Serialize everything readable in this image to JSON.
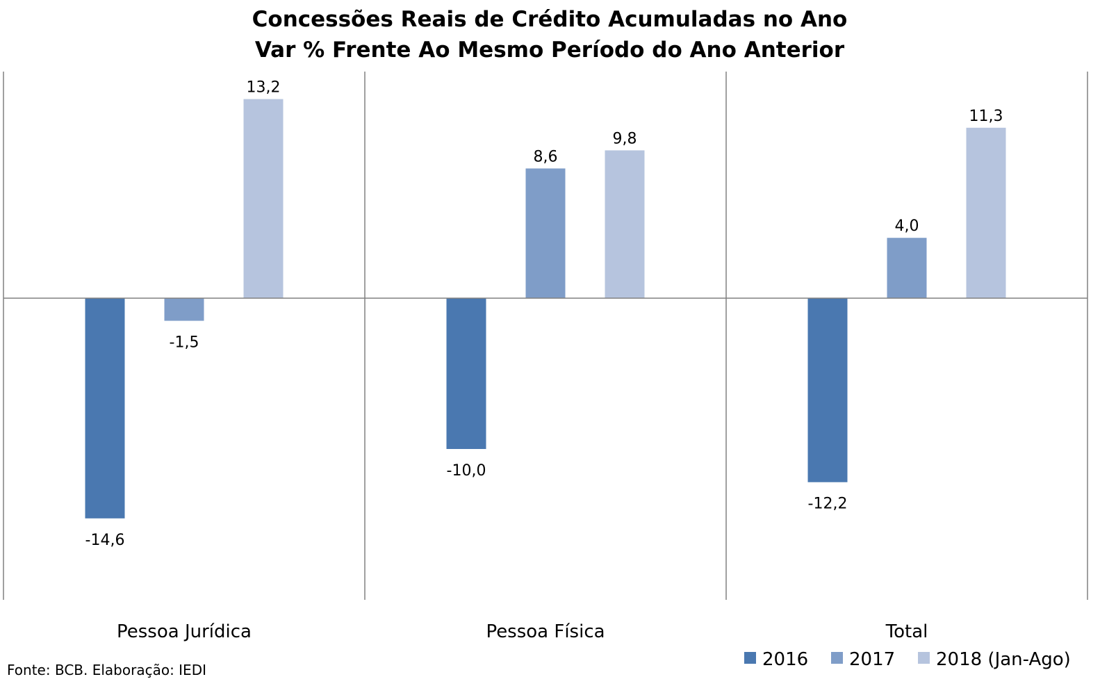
{
  "chart_data": {
    "type": "bar",
    "title": "Concessões Reais de Crédito Acumuladas no Ano",
    "subtitle": "Var % Frente Ao Mesmo Período do Ano Anterior",
    "categories": [
      "Pessoa Jurídica",
      "Pessoa Física",
      "Total"
    ],
    "series": [
      {
        "name": "2016",
        "color": "#4a78b0",
        "values": [
          -14.6,
          -10.0,
          -12.2
        ],
        "labels": [
          "-14,6",
          "-10,0",
          "-12,2"
        ]
      },
      {
        "name": "2017",
        "color": "#7f9dc8",
        "values": [
          -1.5,
          8.6,
          4.0
        ],
        "labels": [
          "-1,5",
          "8,6",
          "4,0"
        ]
      },
      {
        "name": "2018 (Jan-Ago)",
        "color": "#b6c4de",
        "values": [
          13.2,
          9.8,
          11.3
        ],
        "labels": [
          "13,2",
          "9,8",
          "11,3"
        ]
      }
    ],
    "ylim": [
      -20,
      15
    ],
    "grid": false,
    "legend_position": "bottom-right"
  },
  "source": "Fonte: BCB. Elaboração: IEDI"
}
